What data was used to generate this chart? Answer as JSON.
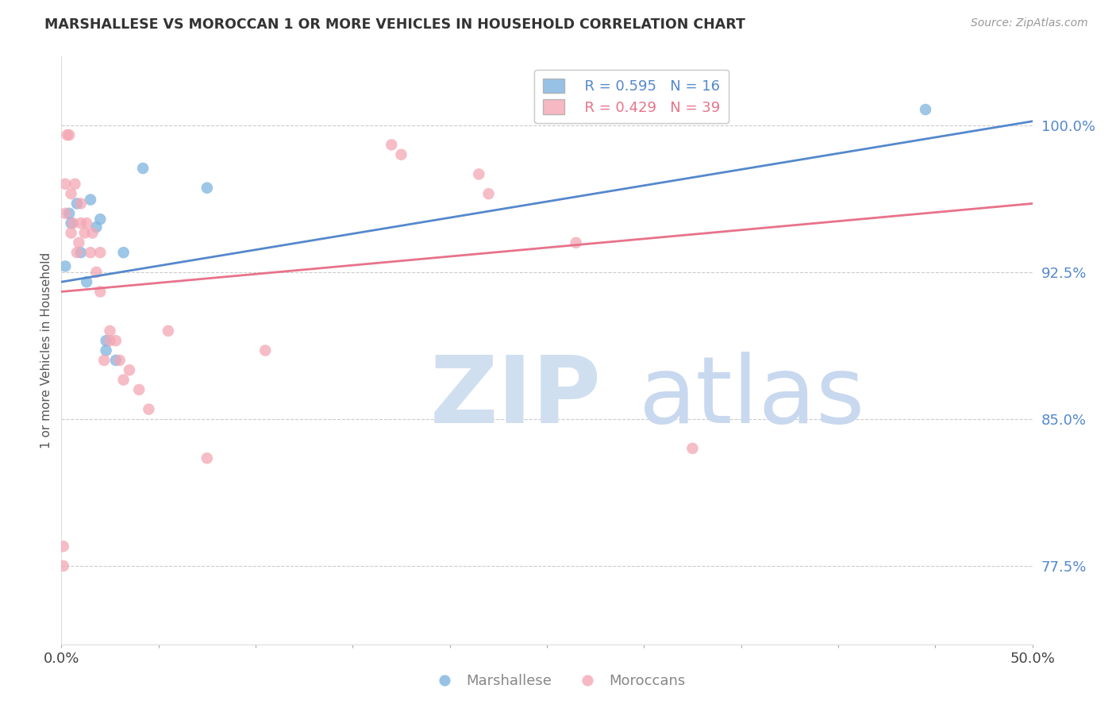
{
  "title": "MARSHALLESE VS MOROCCAN 1 OR MORE VEHICLES IN HOUSEHOLD CORRELATION CHART",
  "source": "Source: ZipAtlas.com",
  "ylabel": "1 or more Vehicles in Household",
  "yticks": [
    77.5,
    85.0,
    92.5,
    100.0
  ],
  "ytick_labels": [
    "77.5%",
    "85.0%",
    "92.5%",
    "100.0%"
  ],
  "xmin": 0.0,
  "xmax": 50.0,
  "ymin": 73.5,
  "ymax": 103.5,
  "blue_label": "Marshallese",
  "pink_label": "Moroccans",
  "blue_R": "R = 0.595",
  "blue_N": "N = 16",
  "pink_R": "R = 0.429",
  "pink_N": "N = 39",
  "blue_color": "#7db3e0",
  "pink_color": "#f4a7b5",
  "blue_line_color": "#5588cc",
  "pink_line_color": "#e8728a",
  "watermark_zip_color": "#d0dff0",
  "watermark_atlas_color": "#c8d8ef",
  "grid_color": "#cccccc",
  "title_color": "#333333",
  "source_color": "#999999",
  "tick_label_color": "#5588cc",
  "axis_label_color": "#555555",
  "bottom_legend_color": "#888888",
  "blue_x": [
    0.2,
    0.4,
    0.5,
    0.8,
    1.0,
    1.3,
    1.5,
    1.8,
    2.0,
    2.3,
    2.3,
    2.8,
    3.2,
    4.2,
    7.5,
    44.5
  ],
  "blue_y": [
    92.8,
    95.5,
    95.0,
    96.0,
    93.5,
    92.0,
    96.2,
    94.8,
    95.2,
    88.5,
    89.0,
    88.0,
    93.5,
    97.8,
    96.8,
    100.8
  ],
  "pink_x": [
    0.1,
    0.1,
    0.2,
    0.2,
    0.3,
    0.4,
    0.5,
    0.5,
    0.6,
    0.7,
    0.8,
    0.9,
    1.0,
    1.0,
    1.2,
    1.3,
    1.5,
    1.6,
    1.8,
    2.0,
    2.0,
    2.2,
    2.5,
    2.5,
    2.8,
    3.0,
    3.2,
    3.5,
    4.0,
    4.5,
    5.5,
    7.5,
    10.5,
    17.0,
    17.5,
    21.5,
    22.0,
    26.5,
    32.5
  ],
  "pink_y": [
    77.5,
    78.5,
    95.5,
    97.0,
    99.5,
    99.5,
    94.5,
    96.5,
    95.0,
    97.0,
    93.5,
    94.0,
    95.0,
    96.0,
    94.5,
    95.0,
    93.5,
    94.5,
    92.5,
    93.5,
    91.5,
    88.0,
    89.0,
    89.5,
    89.0,
    88.0,
    87.0,
    87.5,
    86.5,
    85.5,
    89.5,
    83.0,
    88.5,
    99.0,
    98.5,
    97.5,
    96.5,
    94.0,
    83.5
  ],
  "blue_trendline": [
    92.0,
    100.2
  ],
  "pink_trendline": [
    91.5,
    96.0
  ]
}
